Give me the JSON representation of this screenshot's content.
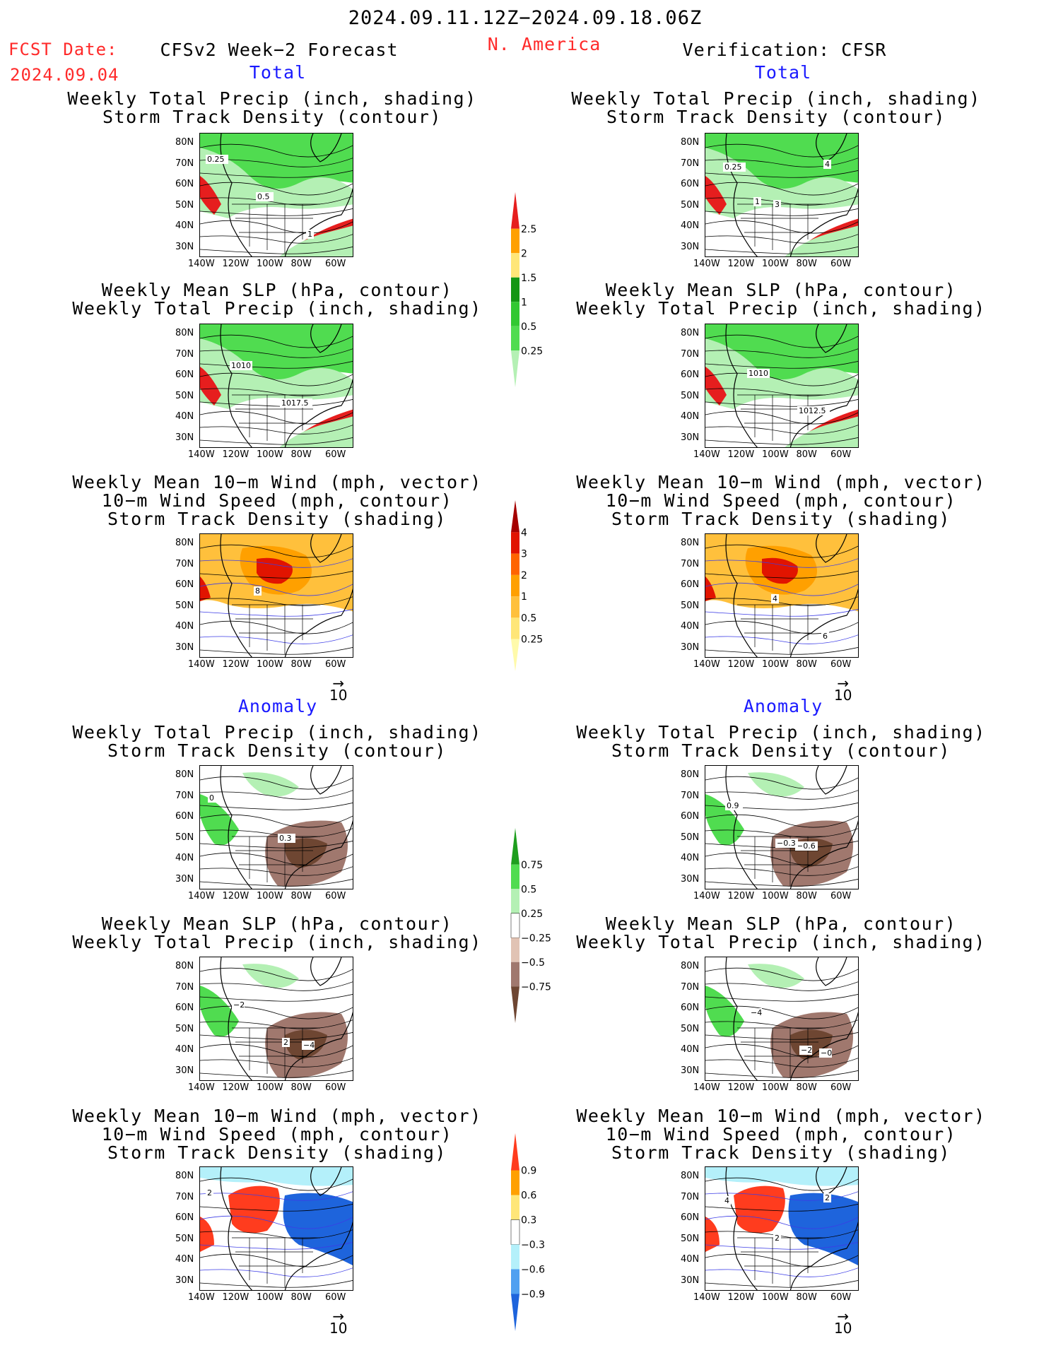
{
  "header": {
    "date_range": "2024.09.11.12Z−2024.09.18.06Z",
    "fcst_label": "FCST Date:",
    "fcst_date": "2024.09.04",
    "left_title": "CFSv2 Week−2 Forecast",
    "region": "N. America",
    "right_title": "Verification: CFSR"
  },
  "sections": {
    "total": "Total",
    "anomaly": "Anomaly"
  },
  "titles": {
    "precip_storm": [
      "Weekly Total Precip (inch, shading)",
      "Storm Track Density (contour)"
    ],
    "slp_precip": [
      "Weekly Mean SLP (hPa, contour)",
      "Weekly Total Precip (inch, shading)"
    ],
    "wind": [
      "Weekly Mean 10−m Wind (mph, vector)",
      "10−m Wind Speed (mph, contour)",
      "Storm Track Density (shading)"
    ]
  },
  "axes": {
    "lat": [
      "80N",
      "70N",
      "60N",
      "50N",
      "40N",
      "30N"
    ],
    "lon": [
      "140W",
      "120W",
      "100W",
      "80W",
      "60W"
    ]
  },
  "vector_ref": "10",
  "colorbars": {
    "precip_total": {
      "labels": [
        "0.25",
        "0.5",
        "1",
        "1.5",
        "2",
        "2.5"
      ],
      "colors": [
        "#b4f0b4",
        "#50dc50",
        "#32c832",
        "#149614",
        "#ffe678",
        "#ffa000",
        "#e61e1e"
      ]
    },
    "storm_total": {
      "labels": [
        "0.25",
        "0.5",
        "1",
        "2",
        "3",
        "4"
      ],
      "colors": [
        "#fffaaa",
        "#ffe678",
        "#ffc03c",
        "#ffa000",
        "#ff6400",
        "#e11400",
        "#a50000"
      ]
    },
    "precip_anom": {
      "labels": [
        "0.75",
        "0.5",
        "0.25",
        "−0.25",
        "−0.5",
        "−0.75"
      ],
      "colors": [
        "#1e9e1e",
        "#50dc50",
        "#b4f0b4",
        "#ffffff",
        "#e1c3b4",
        "#a0786e",
        "#6e4632"
      ]
    },
    "storm_anom": {
      "labels": [
        "0.9",
        "0.6",
        "0.3",
        "−0.3",
        "−0.6",
        "−0.9"
      ],
      "colors": [
        "#ff3c1e",
        "#ffa000",
        "#ffe678",
        "#ffffff",
        "#b4f0fa",
        "#50a0f0",
        "#1e64dc"
      ]
    }
  },
  "map_colors": {
    "ocean": "#ffffff",
    "precip_light": "#b4f0b4",
    "precip_mid": "#50dc50",
    "precip_heavy": "#e61e1e",
    "storm_orange": "#ffa000",
    "storm_red": "#e11400",
    "anom_dry": "#a0786e",
    "anom_wet": "#50dc50",
    "anom_blue": "#1e64dc"
  },
  "contour_labels": {
    "p1_left": [
      "0.25",
      "0.5",
      "1"
    ],
    "p1_right": [
      "0.25",
      "3",
      "4",
      "1"
    ],
    "p2_left": [
      "1010",
      "1017.5"
    ],
    "p2_right": [
      "1010",
      "1012.5"
    ],
    "p3_left": [
      "8"
    ],
    "p3_right": [
      "4",
      "6"
    ],
    "p4_left": [
      "0.3",
      "0"
    ],
    "p4_right": [
      "−0.6",
      "0.9",
      "−0.3"
    ],
    "p5_left": [
      "−4",
      "−2",
      "2"
    ],
    "p5_right": [
      "−0",
      "−4",
      "−2"
    ],
    "p6_left": [
      "2"
    ],
    "p6_right": [
      "4",
      "2",
      "2"
    ]
  }
}
